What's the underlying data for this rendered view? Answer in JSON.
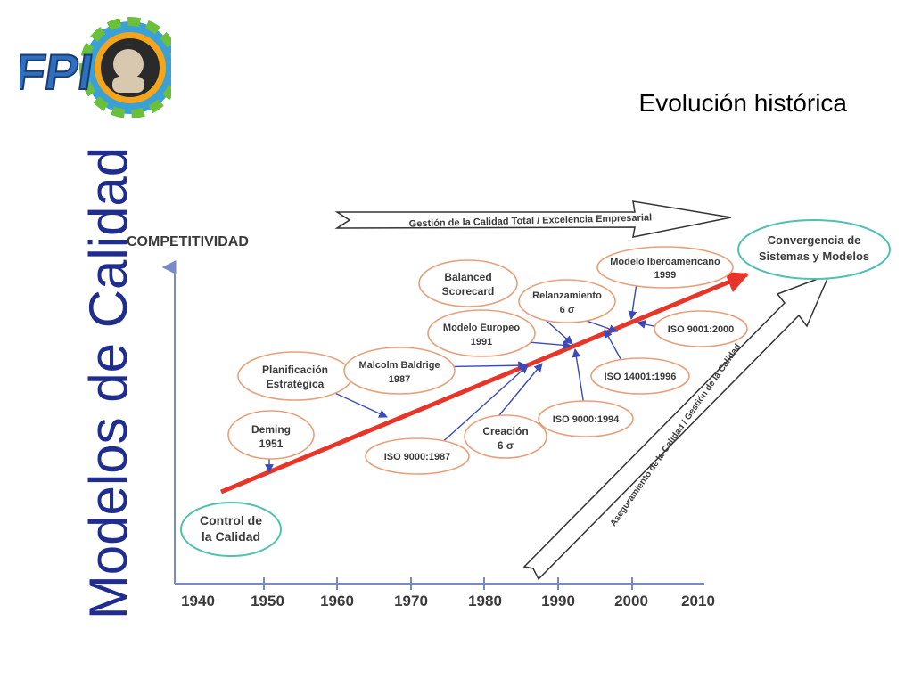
{
  "slide": {
    "vertical_title": "Modelos de Calidad",
    "subtitle": "Evolución histórica"
  },
  "logo": {
    "text": "FPI",
    "icon": "gear-portrait-logo"
  },
  "axis": {
    "y_label": "COMPETITIVIDAD",
    "x_ticks": [
      "1940",
      "1950",
      "1960",
      "1970",
      "1980",
      "1990",
      "2000",
      "2010"
    ]
  },
  "banners": {
    "top": "Gestión de la Calidad Total / Excelencia Empresarial",
    "diagonal": "Aseguramiento de la Calidad / Gestión de la Calidad"
  },
  "milestones": {
    "control": [
      "Control de",
      "la Calidad"
    ],
    "convergencia": [
      "Convergencia de",
      "Sistemas y Modelos"
    ],
    "deming": [
      "Deming",
      "1951"
    ],
    "planificacion": [
      "Planificación",
      "Estratégica"
    ],
    "baldrige": [
      "Malcolm Baldrige",
      "1987"
    ],
    "iso9000_1987": [
      "ISO 9000:1987"
    ],
    "creacion": [
      "Creación",
      "6 σ"
    ],
    "europeo": [
      "Modelo Europeo",
      "1991"
    ],
    "balanced": [
      "Balanced",
      "Scorecard"
    ],
    "relanzamiento": [
      "Relanzamiento",
      "6 σ"
    ],
    "iso9000_1994": [
      "ISO 9000:1994"
    ],
    "iso14001": [
      "ISO 14001:1996"
    ],
    "iberoamericano": [
      "Modelo Iberoamericano",
      "1999"
    ],
    "iso9001_2000": [
      "ISO 9001:2000"
    ]
  },
  "colors": {
    "title": "#1f2d8f",
    "trend": "#e8352a",
    "ellipse_orange": "#e8a07a",
    "ellipse_teal": "#4fc2ad",
    "pointer": "#3a4bb8",
    "axis": "#7a8ac9"
  }
}
